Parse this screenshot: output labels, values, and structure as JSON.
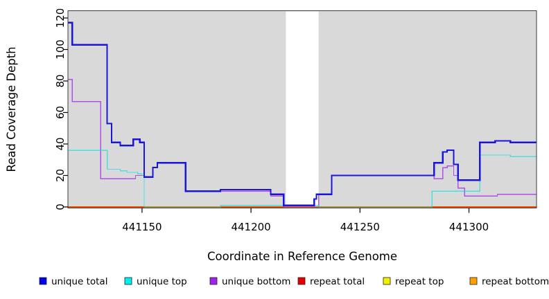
{
  "chart_data": {
    "type": "line",
    "subtype": "step-coverage",
    "title": "",
    "xlabel": "Coordinate in Reference Genome",
    "ylabel": "Read Coverage Depth",
    "xlim": [
      441116,
      441331
    ],
    "ylim": [
      0,
      120
    ],
    "x_ticks": [
      441150,
      441200,
      441250,
      441300
    ],
    "y_ticks": [
      0,
      20,
      40,
      60,
      80,
      100,
      120
    ],
    "grid": false,
    "plot_background": "#d9d9d9",
    "gap_region": {
      "x_start": 441216,
      "x_end": 441231,
      "color": "#ffffff"
    },
    "legend_position": "bottom",
    "legend": [
      {
        "label": "unique total",
        "color": "#0000ee"
      },
      {
        "label": "unique top",
        "color": "#00eeee"
      },
      {
        "label": "unique bottom",
        "color": "#a020f0"
      },
      {
        "label": "repeat total",
        "color": "#e60000"
      },
      {
        "label": "repeat top",
        "color": "#f0f000"
      },
      {
        "label": "repeat bottom",
        "color": "#ffa000"
      }
    ],
    "series": [
      {
        "name": "unique total",
        "color": "#1b15dc",
        "width": 2.2,
        "opacity": 1,
        "points": [
          [
            441116,
            117
          ],
          [
            441118,
            103
          ],
          [
            441134,
            53
          ],
          [
            441136,
            41
          ],
          [
            441140,
            39
          ],
          [
            441146,
            43
          ],
          [
            441149,
            41
          ],
          [
            441151,
            19
          ],
          [
            441155,
            25
          ],
          [
            441157,
            28
          ],
          [
            441170,
            10
          ],
          [
            441186,
            11
          ],
          [
            441209,
            8
          ],
          [
            441215,
            1
          ],
          [
            441229,
            5
          ],
          [
            441230,
            8
          ],
          [
            441237,
            20
          ],
          [
            441284,
            28
          ],
          [
            441288,
            35
          ],
          [
            441290,
            36
          ],
          [
            441293,
            27
          ],
          [
            441295,
            17
          ],
          [
            441305,
            41
          ],
          [
            441312,
            42
          ],
          [
            441319,
            41
          ]
        ]
      },
      {
        "name": "unique top",
        "color": "#00e0e0",
        "width": 1.3,
        "opacity": 0.65,
        "points": [
          [
            441116,
            36
          ],
          [
            441134,
            24
          ],
          [
            441140,
            23
          ],
          [
            441143,
            22
          ],
          [
            441148,
            21
          ],
          [
            441150,
            20
          ],
          [
            441151,
            0
          ],
          [
            441186,
            1
          ],
          [
            441231,
            0
          ],
          [
            441283,
            10
          ],
          [
            441305,
            33
          ],
          [
            441319,
            32
          ]
        ]
      },
      {
        "name": "unique bottom",
        "color": "#a020f0",
        "width": 1.3,
        "opacity": 0.75,
        "points": [
          [
            441116,
            81
          ],
          [
            441118,
            67
          ],
          [
            441131,
            18
          ],
          [
            441147,
            20
          ],
          [
            441151,
            19
          ],
          [
            441155,
            25
          ],
          [
            441157,
            28
          ],
          [
            441170,
            10
          ],
          [
            441186,
            10
          ],
          [
            441209,
            7
          ],
          [
            441215,
            0
          ],
          [
            441231,
            8
          ],
          [
            441237,
            20
          ],
          [
            441284,
            18
          ],
          [
            441288,
            25
          ],
          [
            441290,
            26
          ],
          [
            441293,
            20
          ],
          [
            441295,
            12
          ],
          [
            441298,
            7
          ],
          [
            441313,
            8
          ]
        ]
      },
      {
        "name": "repeat total",
        "color": "#e60000",
        "width": 1.3,
        "opacity": 1,
        "points": [
          [
            441116,
            0
          ]
        ]
      },
      {
        "name": "repeat top",
        "color": "#f0f000",
        "width": 1.3,
        "opacity": 1,
        "points": [
          [
            441116,
            0
          ]
        ]
      },
      {
        "name": "repeat bottom",
        "color": "#ff9f00",
        "width": 1.6,
        "opacity": 1,
        "points": [
          [
            441116,
            0
          ]
        ]
      }
    ]
  }
}
